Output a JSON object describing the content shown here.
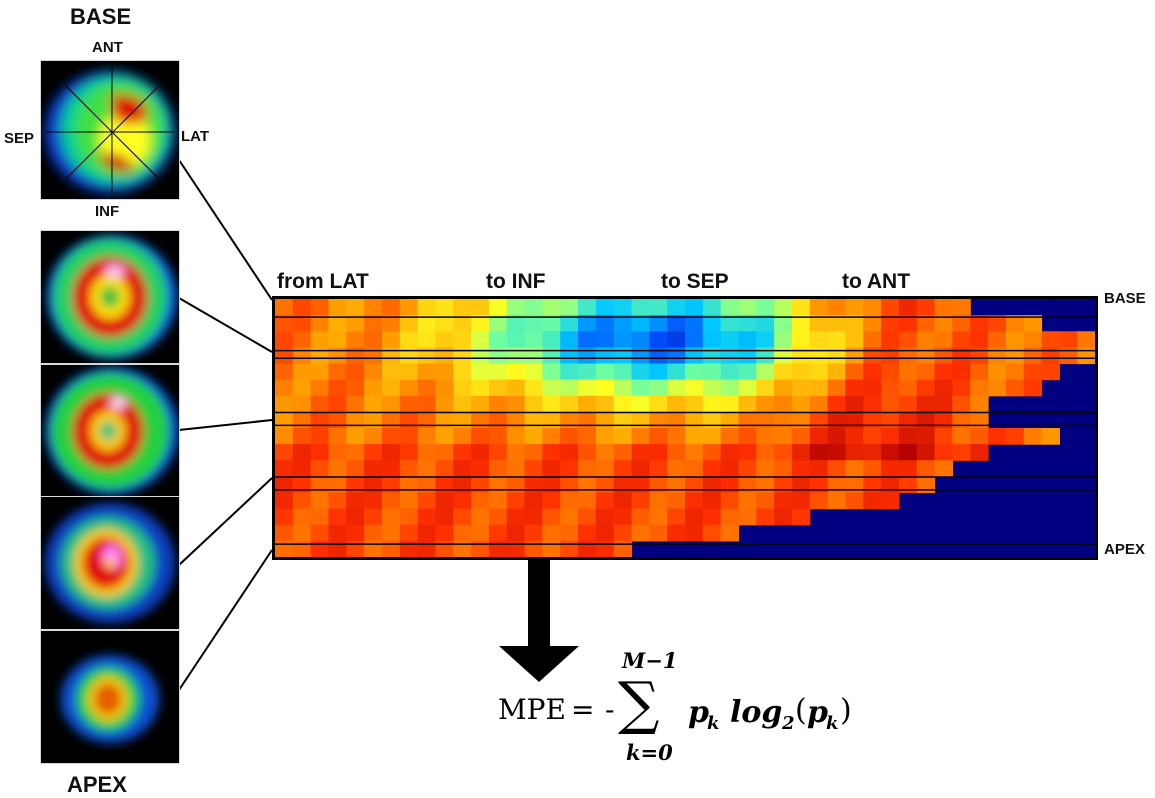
{
  "left_panel": {
    "top_title": "BASE",
    "bottom_title": "APEX",
    "orientation": {
      "ant": "ANT",
      "inf": "INF",
      "sep": "SEP",
      "lat": "LAT"
    }
  },
  "polar_map": {
    "column_labels": [
      "from LAT",
      "to INF",
      "to SEP",
      "to ANT"
    ],
    "row_label_top": "BASE",
    "row_label_bottom": "APEX",
    "colormap": [
      "#00008f",
      "#0050ff",
      "#00c8ff",
      "#70ffa0",
      "#ffff20",
      "#ffa000",
      "#ff3000",
      "#b00000"
    ]
  },
  "formula": {
    "lhs": "MPE",
    "equals": "=",
    "minus": "-",
    "upper_limit": "M−1",
    "lower_limit": "k=0",
    "sum_symbol": "∑",
    "term_p": "p",
    "term_k": "k",
    "log_base": "log",
    "log_sub": "2",
    "open_paren": "(",
    "close_paren": ")"
  }
}
